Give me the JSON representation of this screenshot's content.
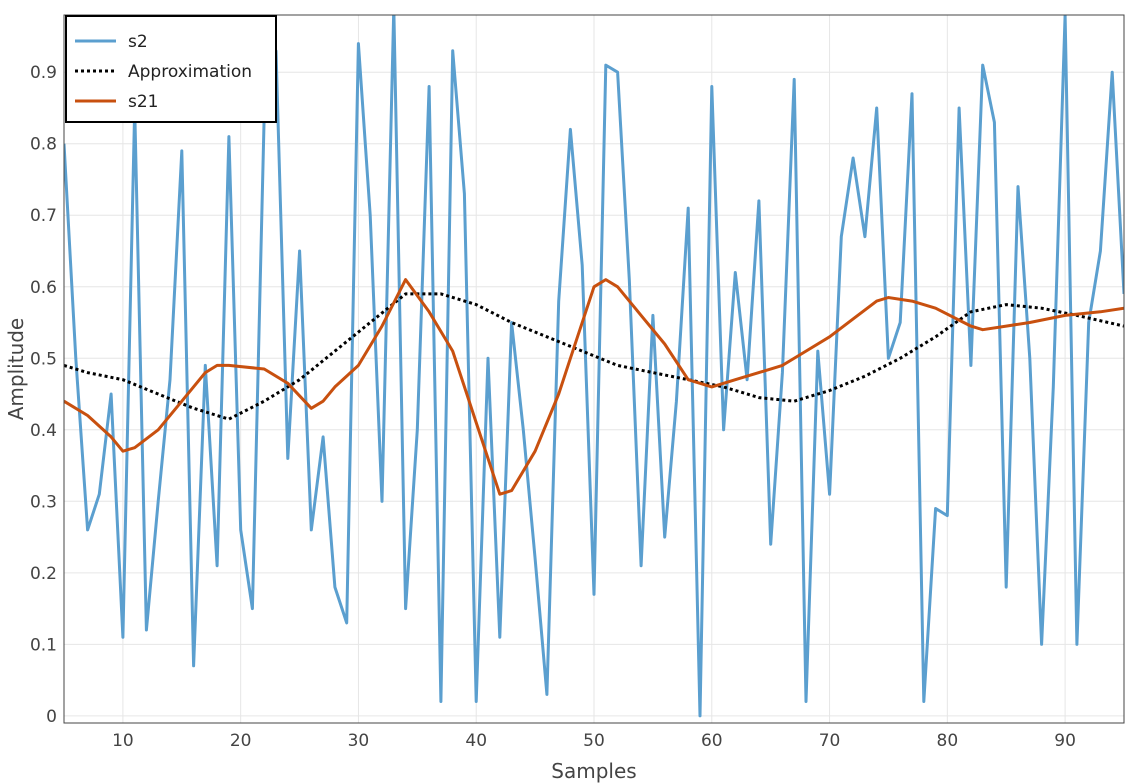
{
  "chart_data": {
    "type": "line",
    "title": "",
    "xlabel": "Samples",
    "ylabel": "Amplitude",
    "xlim": [
      5,
      95
    ],
    "ylim": [
      -0.01,
      0.98
    ],
    "xticks": [
      10,
      20,
      30,
      40,
      50,
      60,
      70,
      80,
      90
    ],
    "yticks": [
      0,
      0.1,
      0.2,
      0.3,
      0.4,
      0.5,
      0.6,
      0.7,
      0.8,
      0.9
    ],
    "grid": true,
    "legend_position": "top-left",
    "colors": {
      "s2": "#5b9fcf",
      "approximation": "#000000",
      "s21": "#c8500f",
      "grid": "#e6e6e6"
    },
    "series": [
      {
        "name": "s2",
        "style": "solid",
        "x": [
          5,
          6,
          7,
          8,
          9,
          10,
          11,
          12,
          13,
          14,
          15,
          16,
          17,
          18,
          19,
          20,
          21,
          22,
          23,
          24,
          25,
          26,
          27,
          28,
          29,
          30,
          31,
          32,
          33,
          34,
          35,
          36,
          37,
          38,
          39,
          40,
          41,
          42,
          43,
          44,
          45,
          46,
          47,
          48,
          49,
          50,
          51,
          52,
          53,
          54,
          55,
          56,
          57,
          58,
          59,
          60,
          61,
          62,
          63,
          64,
          65,
          66,
          67,
          68,
          69,
          70,
          71,
          72,
          73,
          74,
          75,
          76,
          77,
          78,
          79,
          80,
          81,
          82,
          83,
          84,
          85,
          86,
          87,
          88,
          89,
          90,
          91,
          92,
          93,
          94,
          95
        ],
        "values": [
          0.8,
          0.5,
          0.26,
          0.31,
          0.45,
          0.11,
          0.85,
          0.12,
          0.3,
          0.47,
          0.79,
          0.07,
          0.49,
          0.21,
          0.81,
          0.26,
          0.15,
          0.84,
          0.93,
          0.36,
          0.65,
          0.26,
          0.39,
          0.18,
          0.13,
          0.94,
          0.7,
          0.3,
          0.99,
          0.15,
          0.4,
          0.88,
          0.02,
          0.93,
          0.73,
          0.02,
          0.5,
          0.11,
          0.55,
          0.4,
          0.22,
          0.03,
          0.58,
          0.82,
          0.63,
          0.17,
          0.91,
          0.9,
          0.61,
          0.21,
          0.56,
          0.25,
          0.44,
          0.71,
          0.0,
          0.88,
          0.4,
          0.62,
          0.47,
          0.72,
          0.24,
          0.48,
          0.89,
          0.02,
          0.51,
          0.31,
          0.67,
          0.78,
          0.67,
          0.85,
          0.5,
          0.55,
          0.87,
          0.02,
          0.29,
          0.28,
          0.85,
          0.49,
          0.91,
          0.83,
          0.18,
          0.74,
          0.5,
          0.1,
          0.46,
          0.98,
          0.1,
          0.55,
          0.65,
          0.9,
          0.59
        ]
      },
      {
        "name": "Approximation",
        "style": "dotted",
        "x": [
          5,
          7,
          10,
          13,
          16,
          19,
          22,
          25,
          28,
          31,
          34,
          37,
          40,
          43,
          46,
          49,
          52,
          55,
          58,
          61,
          64,
          67,
          70,
          73,
          76,
          79,
          82,
          85,
          88,
          91,
          95
        ],
        "values": [
          0.49,
          0.48,
          0.47,
          0.45,
          0.43,
          0.415,
          0.44,
          0.47,
          0.51,
          0.55,
          0.59,
          0.59,
          0.575,
          0.55,
          0.53,
          0.51,
          0.49,
          0.48,
          0.47,
          0.46,
          0.445,
          0.44,
          0.455,
          0.475,
          0.5,
          0.53,
          0.565,
          0.575,
          0.57,
          0.56,
          0.545
        ]
      },
      {
        "name": "s21",
        "style": "solid",
        "x": [
          5,
          7,
          9,
          10,
          11,
          13,
          15,
          17,
          18,
          19,
          22,
          24,
          26,
          27,
          28,
          30,
          32,
          34,
          36,
          38,
          40,
          42,
          43,
          45,
          47,
          48,
          50,
          51,
          52,
          54,
          56,
          58,
          60,
          62,
          64,
          66,
          68,
          70,
          72,
          74,
          75,
          77,
          79,
          82,
          83,
          85,
          87,
          90,
          93,
          95
        ],
        "values": [
          0.44,
          0.42,
          0.39,
          0.37,
          0.375,
          0.4,
          0.44,
          0.48,
          0.49,
          0.49,
          0.485,
          0.465,
          0.43,
          0.44,
          0.46,
          0.49,
          0.545,
          0.61,
          0.565,
          0.51,
          0.41,
          0.31,
          0.315,
          0.37,
          0.45,
          0.5,
          0.6,
          0.61,
          0.6,
          0.56,
          0.52,
          0.47,
          0.46,
          0.47,
          0.48,
          0.49,
          0.51,
          0.53,
          0.555,
          0.58,
          0.585,
          0.58,
          0.57,
          0.545,
          0.54,
          0.545,
          0.55,
          0.56,
          0.565,
          0.57
        ]
      }
    ]
  }
}
